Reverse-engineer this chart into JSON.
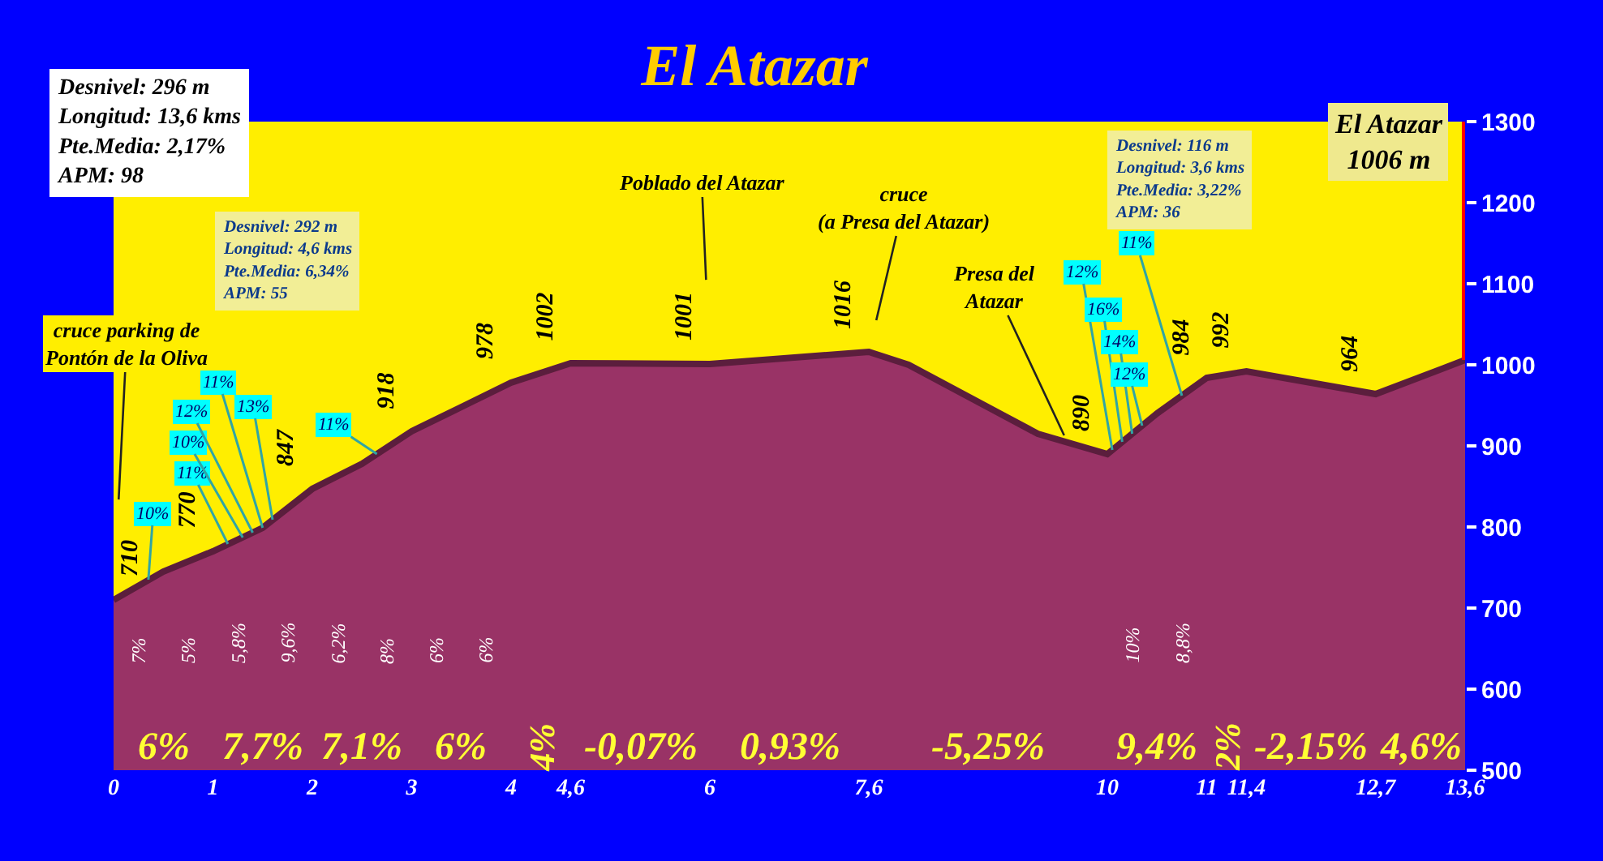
{
  "chart_data": {
    "type": "area",
    "title": "El Atazar",
    "x": [
      0,
      0.5,
      1,
      1.5,
      2,
      2.5,
      3,
      3.5,
      4,
      4.6,
      6,
      7.6,
      8,
      9.3,
      10,
      10.5,
      11,
      11.4,
      12.7,
      13.6
    ],
    "series": [
      {
        "color": "#993366",
        "values": [
          710,
          745,
          770,
          799,
          847,
          878,
          918,
          948,
          978,
          1002,
          1001,
          1016,
          1000,
          915,
          890,
          940,
          984,
          992,
          964,
          1006
        ],
        "value_labels": [
          "710",
          null,
          "770",
          null,
          "847",
          null,
          "918",
          null,
          "978",
          "1002",
          "1001",
          "1016",
          null,
          null,
          "890",
          null,
          "984",
          "992",
          "964",
          null
        ]
      }
    ],
    "xlim": [
      0,
      13.6
    ],
    "xticks": [
      0,
      1,
      2,
      3,
      4,
      {
        "value": 4.6,
        "label": "4,6"
      },
      6,
      {
        "value": 7.6,
        "label": "7,6"
      },
      10,
      11,
      {
        "value": 11.4,
        "label": "11,4"
      },
      {
        "value": 12.7,
        "label": "12,7"
      },
      {
        "value": 13.6,
        "label": "13,6"
      }
    ],
    "ylim": [
      500,
      1300
    ],
    "yticks": [
      500,
      600,
      700,
      800,
      900,
      1000,
      1100,
      1200,
      1300
    ],
    "ref_lines": [
      {
        "axis": "x",
        "value": 13.6,
        "label": "El Atazar\n1006 m",
        "color": "#ff0000"
      }
    ],
    "annotations": [
      "Desnivel: 296 m\nLongitud: 13,6 kms\nPte.Media: 2,17%\nAPM: 98",
      "Desnivel: 292 m\nLongitud: 4,6 kms\nPte.Media: 6,34%\nAPM: 55",
      "Desnivel: 116 m\nLongitud: 3,6 kms\nPte.Media: 3,22%\nAPM: 36",
      {
        "text": "cruce parking de\nPontón de la Oliva",
        "x": 0,
        "y": 710
      },
      {
        "text": "Poblado del Atazar",
        "x": 6,
        "y": 1001
      },
      {
        "text": "cruce\n(a Presa del Atazar)",
        "x": 7.6,
        "y": 1016
      },
      {
        "text": "Presa del\nAtazar",
        "x": 9.6,
        "y": 904
      },
      {
        "text": "10%",
        "x": 0.35,
        "y": 735
      },
      {
        "text": "11%",
        "x": 1.15,
        "y": 779
      },
      {
        "text": "10%",
        "x": 1.3,
        "y": 787
      },
      {
        "text": "12%",
        "x": 1.4,
        "y": 793
      },
      {
        "text": "11%",
        "x": 1.5,
        "y": 799
      },
      {
        "text": "13%",
        "x": 1.6,
        "y": 809
      },
      {
        "text": "11%",
        "x": 2.65,
        "y": 890
      },
      {
        "text": "12%",
        "x": 10.05,
        "y": 895
      },
      {
        "text": "16%",
        "x": 10.15,
        "y": 905
      },
      {
        "text": "14%",
        "x": 10.25,
        "y": 915
      },
      {
        "text": "12%",
        "x": 10.35,
        "y": 925
      },
      {
        "text": "11%",
        "x": 10.75,
        "y": 962
      },
      "6%",
      "7,7%",
      "7,1%",
      "6%",
      "4%",
      "-0,07%",
      "0,93%",
      "-5,25%",
      "9,4%",
      "2%",
      "-2,15%",
      "4,6%",
      "7%",
      "5%",
      "5,8%",
      "9,6%",
      "6,2%",
      "8%",
      "6%",
      "6%",
      "10%",
      "8,8%"
    ]
  }
}
